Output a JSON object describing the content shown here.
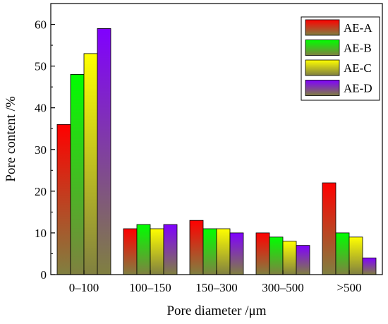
{
  "chart_data": {
    "type": "bar",
    "title": "",
    "xlabel": "Pore diameter /μm",
    "ylabel": "Pore content /%",
    "categories": [
      "0–100",
      "100–150",
      "150–300",
      "300–500",
      ">500"
    ],
    "series": [
      {
        "name": "AE-A",
        "values": [
          36,
          11,
          13,
          10,
          22
        ],
        "color_top": "#ff0000",
        "color_bottom": "#808040"
      },
      {
        "name": "AE-B",
        "values": [
          48,
          12,
          11,
          9,
          10
        ],
        "color_top": "#00ff00",
        "color_bottom": "#808040"
      },
      {
        "name": "AE-C",
        "values": [
          53,
          11,
          11,
          8,
          9
        ],
        "color_top": "#ffff00",
        "color_bottom": "#808040"
      },
      {
        "name": "AE-D",
        "values": [
          59,
          12,
          10,
          7,
          4
        ],
        "color_top": "#8000ff",
        "color_bottom": "#808040"
      }
    ],
    "ylim": [
      0,
      65
    ],
    "yticks": [
      "0",
      "10",
      "20",
      "30",
      "40",
      "50",
      "60"
    ],
    "grid": false,
    "legend_position": "top-right"
  }
}
